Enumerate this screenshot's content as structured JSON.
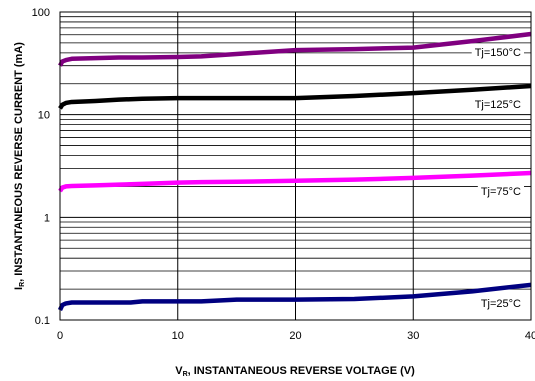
{
  "chart_data": {
    "type": "line",
    "x_axis": {
      "label_main": "V",
      "label_sub": "R",
      "label_rest": ", INSTANTANEOUS REVERSE VOLTAGE (V)",
      "range": [
        0,
        40
      ],
      "ticks": [
        0,
        10,
        20,
        30,
        40
      ],
      "tick_labels": [
        "0",
        "10",
        "20",
        "30",
        "40"
      ]
    },
    "y_axis": {
      "label_main": "I",
      "label_sub": "R",
      "label_rest": ", INSTANTANEOUS REVERSE CURRENT (mA)",
      "scale": "log",
      "range": [
        0.1,
        100
      ],
      "ticks": [
        0.1,
        1,
        10,
        100
      ],
      "tick_labels": [
        "0.1",
        "1",
        "10",
        "100"
      ]
    },
    "grid": "major and minor (log)",
    "series": [
      {
        "name": "Tj=150°C",
        "color": "#800080",
        "x": [
          0.0,
          0.2,
          0.5,
          1.0,
          3.0,
          5.0,
          7.0,
          10.0,
          12.0,
          15.0,
          20.0,
          25.0,
          30.0,
          35.0,
          40.0
        ],
        "y": [
          30.0,
          33.0,
          34.0,
          35.0,
          35.5,
          36.0,
          36.0,
          36.5,
          37.0,
          39.0,
          42.5,
          43.5,
          45.0,
          52.0,
          61.0
        ]
      },
      {
        "name": "Tj=125°C",
        "color": "#000000",
        "x": [
          0.0,
          0.2,
          0.5,
          1.0,
          3.0,
          5.0,
          7.0,
          10.0,
          12.0,
          15.0,
          20.0,
          25.0,
          30.0,
          35.0,
          40.0
        ],
        "y": [
          11.5,
          12.5,
          13.0,
          13.3,
          13.6,
          14.0,
          14.3,
          14.5,
          14.5,
          14.5,
          14.5,
          15.2,
          16.2,
          17.5,
          19.0
        ]
      },
      {
        "name": "Tj=75°C",
        "color": "#ff00ff",
        "x": [
          0.0,
          0.2,
          0.5,
          1.0,
          3.0,
          5.0,
          7.0,
          10.0,
          12.0,
          15.0,
          20.0,
          25.0,
          30.0,
          35.0,
          40.0
        ],
        "y": [
          1.8,
          1.95,
          2.0,
          2.02,
          2.05,
          2.08,
          2.12,
          2.18,
          2.2,
          2.22,
          2.27,
          2.33,
          2.42,
          2.55,
          2.7
        ]
      },
      {
        "name": "Tj=25°C",
        "color": "#000080",
        "x": [
          0.0,
          0.2,
          0.5,
          1.0,
          3.0,
          5.0,
          6.0,
          7.0,
          10.0,
          12.0,
          15.0,
          20.0,
          25.0,
          30.0,
          35.0,
          40.0
        ],
        "y": [
          0.125,
          0.14,
          0.145,
          0.148,
          0.148,
          0.148,
          0.148,
          0.152,
          0.152,
          0.152,
          0.158,
          0.158,
          0.16,
          0.17,
          0.19,
          0.22
        ]
      }
    ]
  }
}
